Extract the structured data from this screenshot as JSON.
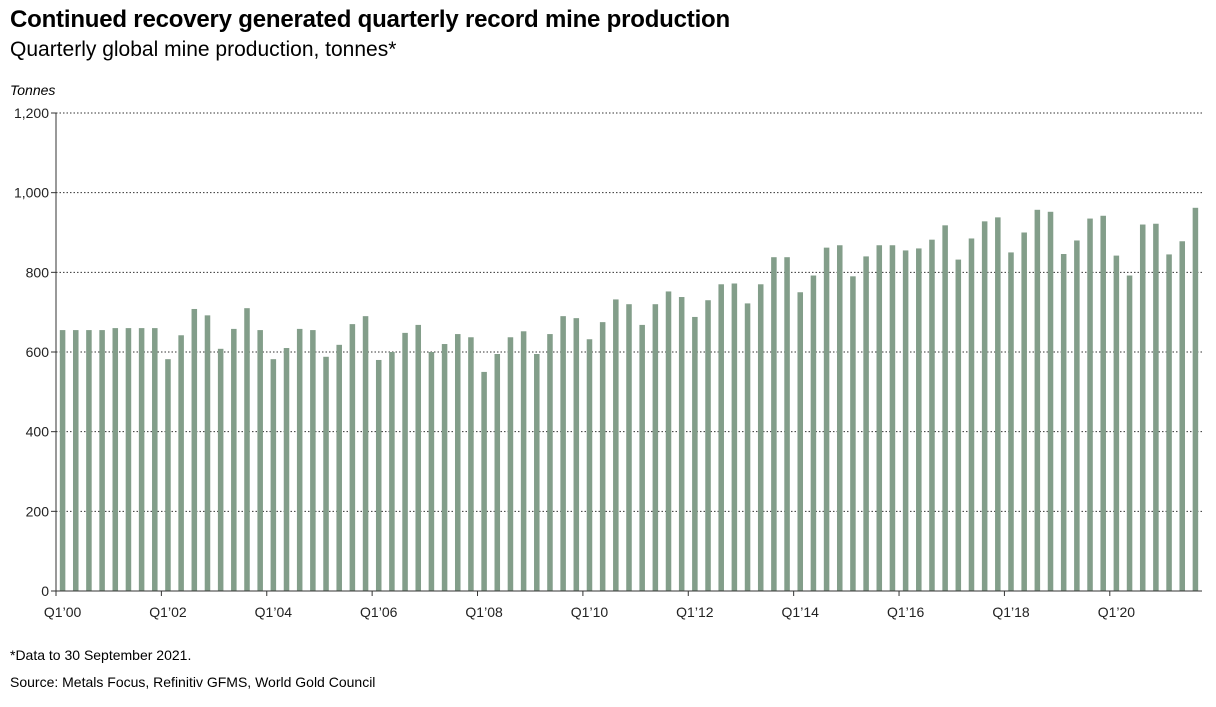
{
  "header": {
    "title": "Continued recovery generated quarterly record mine production",
    "subtitle": "Quarterly global mine production, tonnes*"
  },
  "footer": {
    "footnote": "*Data to 30 September 2021.",
    "source": "Source: Metals Focus, Refinitiv GFMS, World Gold Council"
  },
  "chart_data": {
    "type": "bar",
    "ylabel": "Tonnes",
    "ylim": [
      0,
      1200
    ],
    "yticks": [
      0,
      200,
      400,
      600,
      800,
      1000,
      1200
    ],
    "ytick_labels": [
      "0",
      "200",
      "400",
      "600",
      "800",
      "1,000",
      "1,200"
    ],
    "grid": "horizontal dotted",
    "bar_color": "#839e8a",
    "categories": [
      "Q1'00",
      "Q2'00",
      "Q3'00",
      "Q4'00",
      "Q1'01",
      "Q2'01",
      "Q3'01",
      "Q4'01",
      "Q1'02",
      "Q2'02",
      "Q3'02",
      "Q4'02",
      "Q1'03",
      "Q2'03",
      "Q3'03",
      "Q4'03",
      "Q1'04",
      "Q2'04",
      "Q3'04",
      "Q4'04",
      "Q1'05",
      "Q2'05",
      "Q3'05",
      "Q4'05",
      "Q1'06",
      "Q2'06",
      "Q3'06",
      "Q4'06",
      "Q1'07",
      "Q2'07",
      "Q3'07",
      "Q4'07",
      "Q1'08",
      "Q2'08",
      "Q3'08",
      "Q4'08",
      "Q1'09",
      "Q2'09",
      "Q3'09",
      "Q4'09",
      "Q1'10",
      "Q2'10",
      "Q3'10",
      "Q4'10",
      "Q1'11",
      "Q2'11",
      "Q3'11",
      "Q4'11",
      "Q1'12",
      "Q2'12",
      "Q3'12",
      "Q4'12",
      "Q1'13",
      "Q2'13",
      "Q3'13",
      "Q4'13",
      "Q1'14",
      "Q2'14",
      "Q3'14",
      "Q4'14",
      "Q1'15",
      "Q2'15",
      "Q3'15",
      "Q4'15",
      "Q1'16",
      "Q2'16",
      "Q3'16",
      "Q4'16",
      "Q1'17",
      "Q2'17",
      "Q3'17",
      "Q4'17",
      "Q1'18",
      "Q2'18",
      "Q3'18",
      "Q4'18",
      "Q1'19",
      "Q2'19",
      "Q3'19",
      "Q4'19",
      "Q1'20",
      "Q2'20",
      "Q3'20",
      "Q4'20",
      "Q1'21",
      "Q2'21",
      "Q3'21"
    ],
    "xtick_labels": [
      {
        "index": 0,
        "label": "Q1’00"
      },
      {
        "index": 8,
        "label": "Q1’02"
      },
      {
        "index": 16,
        "label": "Q1’04"
      },
      {
        "index": 24,
        "label": "Q1’06"
      },
      {
        "index": 32,
        "label": "Q1’08"
      },
      {
        "index": 40,
        "label": "Q1’10"
      },
      {
        "index": 48,
        "label": "Q1’12"
      },
      {
        "index": 56,
        "label": "Q1’14"
      },
      {
        "index": 64,
        "label": "Q1’16"
      },
      {
        "index": 72,
        "label": "Q1’18"
      },
      {
        "index": 80,
        "label": "Q1’20"
      }
    ],
    "values": [
      655,
      655,
      655,
      655,
      660,
      660,
      660,
      660,
      582,
      642,
      708,
      692,
      608,
      658,
      710,
      655,
      582,
      610,
      658,
      655,
      588,
      618,
      670,
      690,
      580,
      600,
      648,
      668,
      600,
      620,
      645,
      637,
      550,
      595,
      637,
      652,
      595,
      645,
      690,
      685,
      632,
      675,
      732,
      720,
      668,
      720,
      752,
      738,
      688,
      730,
      770,
      772,
      722,
      770,
      838,
      838,
      750,
      792,
      862,
      868,
      790,
      840,
      868,
      868,
      855,
      860,
      882,
      918,
      832,
      885,
      928,
      938,
      850,
      900,
      957,
      952,
      846,
      880,
      935,
      942,
      842,
      792,
      920,
      922,
      845,
      878,
      962
    ]
  }
}
